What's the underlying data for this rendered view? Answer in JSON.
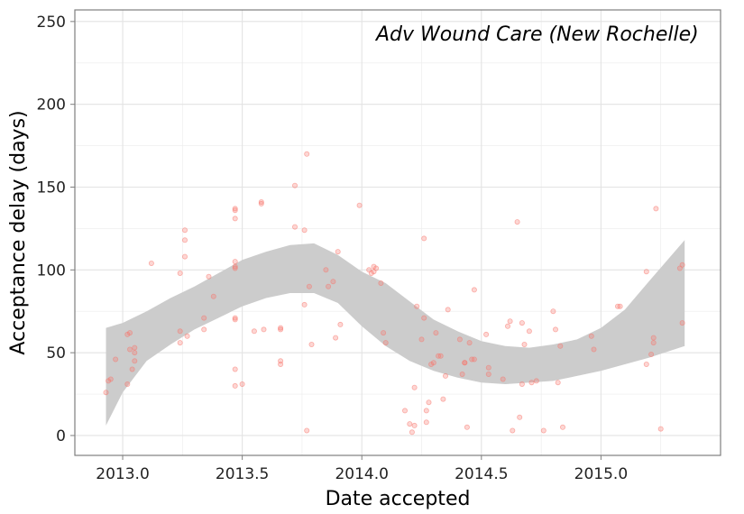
{
  "chart_data": {
    "type": "scatter",
    "title": "",
    "annotation": "Adv Wound Care (New Rochelle)",
    "xlabel": "Date accepted",
    "ylabel": "Acceptance delay (days)",
    "xlim": [
      2012.8,
      2015.5
    ],
    "ylim": [
      -12,
      257
    ],
    "x_ticks": [
      2013.0,
      2013.5,
      2014.0,
      2014.5,
      2015.0
    ],
    "x_tick_labels": [
      "2013.0",
      "2013.5",
      "2014.0",
      "2014.5",
      "2015.0"
    ],
    "y_ticks": [
      0,
      50,
      100,
      150,
      200,
      250
    ],
    "y_tick_labels": [
      "0",
      "50",
      "100",
      "150",
      "200",
      "250"
    ],
    "grid": true,
    "colors": {
      "points": "#f8766d",
      "ribbon": "#cccccc",
      "panel_border": "#7f7f7f",
      "grid": "#ebebeb"
    },
    "points": [
      [
        2012.93,
        26
      ],
      [
        2012.94,
        33
      ],
      [
        2012.95,
        34
      ],
      [
        2012.97,
        46
      ],
      [
        2013.02,
        61
      ],
      [
        2013.03,
        62
      ],
      [
        2013.03,
        52
      ],
      [
        2013.04,
        40
      ],
      [
        2013.02,
        31
      ],
      [
        2013.05,
        50
      ],
      [
        2013.05,
        53
      ],
      [
        2013.05,
        45
      ],
      [
        2013.12,
        104
      ],
      [
        2013.24,
        98
      ],
      [
        2013.24,
        63
      ],
      [
        2013.24,
        56
      ],
      [
        2013.26,
        124
      ],
      [
        2013.26,
        118
      ],
      [
        2013.26,
        108
      ],
      [
        2013.27,
        60
      ],
      [
        2013.34,
        64
      ],
      [
        2013.34,
        71
      ],
      [
        2013.36,
        96
      ],
      [
        2013.38,
        84
      ],
      [
        2013.47,
        137
      ],
      [
        2013.47,
        136
      ],
      [
        2013.47,
        131
      ],
      [
        2013.47,
        105
      ],
      [
        2013.47,
        102
      ],
      [
        2013.47,
        101
      ],
      [
        2013.47,
        71
      ],
      [
        2013.47,
        70
      ],
      [
        2013.47,
        40
      ],
      [
        2013.47,
        30
      ],
      [
        2013.5,
        31
      ],
      [
        2013.55,
        63
      ],
      [
        2013.58,
        141
      ],
      [
        2013.58,
        140
      ],
      [
        2013.59,
        64
      ],
      [
        2013.66,
        64
      ],
      [
        2013.66,
        65
      ],
      [
        2013.66,
        45
      ],
      [
        2013.66,
        43
      ],
      [
        2013.72,
        151
      ],
      [
        2013.72,
        126
      ],
      [
        2013.76,
        124
      ],
      [
        2013.76,
        79
      ],
      [
        2013.77,
        170
      ],
      [
        2013.77,
        3
      ],
      [
        2013.78,
        90
      ],
      [
        2013.79,
        55
      ],
      [
        2013.85,
        100
      ],
      [
        2013.86,
        90
      ],
      [
        2013.88,
        93
      ],
      [
        2013.89,
        59
      ],
      [
        2013.9,
        111
      ],
      [
        2013.91,
        67
      ],
      [
        2013.99,
        139
      ],
      [
        2014.03,
        100
      ],
      [
        2014.04,
        98
      ],
      [
        2014.05,
        102
      ],
      [
        2014.05,
        99
      ],
      [
        2014.06,
        101
      ],
      [
        2014.08,
        92
      ],
      [
        2014.09,
        62
      ],
      [
        2014.1,
        56
      ],
      [
        2014.18,
        15
      ],
      [
        2014.2,
        7
      ],
      [
        2014.21,
        2
      ],
      [
        2014.22,
        6
      ],
      [
        2014.22,
        29
      ],
      [
        2014.23,
        78
      ],
      [
        2014.25,
        58
      ],
      [
        2014.26,
        71
      ],
      [
        2014.26,
        119
      ],
      [
        2014.27,
        8
      ],
      [
        2014.27,
        15
      ],
      [
        2014.28,
        20
      ],
      [
        2014.29,
        43
      ],
      [
        2014.3,
        44
      ],
      [
        2014.31,
        62
      ],
      [
        2014.32,
        48
      ],
      [
        2014.33,
        48
      ],
      [
        2014.34,
        22
      ],
      [
        2014.35,
        36
      ],
      [
        2014.36,
        76
      ],
      [
        2014.41,
        58
      ],
      [
        2014.42,
        37
      ],
      [
        2014.43,
        44
      ],
      [
        2014.43,
        44
      ],
      [
        2014.44,
        5
      ],
      [
        2014.45,
        56
      ],
      [
        2014.46,
        46
      ],
      [
        2014.47,
        88
      ],
      [
        2014.47,
        46
      ],
      [
        2014.52,
        61
      ],
      [
        2014.53,
        41
      ],
      [
        2014.53,
        37
      ],
      [
        2014.59,
        34
      ],
      [
        2014.61,
        66
      ],
      [
        2014.62,
        69
      ],
      [
        2014.63,
        3
      ],
      [
        2014.65,
        129
      ],
      [
        2014.66,
        11
      ],
      [
        2014.67,
        31
      ],
      [
        2014.67,
        68
      ],
      [
        2014.68,
        55
      ],
      [
        2014.7,
        63
      ],
      [
        2014.71,
        32
      ],
      [
        2014.73,
        33
      ],
      [
        2014.76,
        3
      ],
      [
        2014.8,
        75
      ],
      [
        2014.81,
        64
      ],
      [
        2014.82,
        32
      ],
      [
        2014.83,
        54
      ],
      [
        2014.84,
        5
      ],
      [
        2014.96,
        60
      ],
      [
        2014.97,
        52
      ],
      [
        2015.07,
        78
      ],
      [
        2015.08,
        78
      ],
      [
        2015.19,
        99
      ],
      [
        2015.19,
        43
      ],
      [
        2015.21,
        49
      ],
      [
        2015.22,
        59
      ],
      [
        2015.22,
        56
      ],
      [
        2015.23,
        137
      ],
      [
        2015.25,
        4
      ],
      [
        2015.33,
        101
      ],
      [
        2015.34,
        103
      ],
      [
        2015.34,
        68
      ]
    ],
    "smooth": {
      "x": [
        2012.93,
        2013.0,
        2013.1,
        2013.2,
        2013.3,
        2013.4,
        2013.5,
        2013.6,
        2013.7,
        2013.8,
        2013.9,
        2014.0,
        2014.1,
        2014.2,
        2014.3,
        2014.4,
        2014.5,
        2014.6,
        2014.7,
        2014.8,
        2014.9,
        2015.0,
        2015.1,
        2015.2,
        2015.35
      ],
      "upper": [
        65,
        68,
        75,
        83,
        90,
        98,
        106,
        111,
        115,
        116,
        109,
        99,
        92,
        81,
        70,
        63,
        57,
        54,
        53,
        55,
        58,
        65,
        76,
        93,
        118
      ],
      "lower": [
        6,
        26,
        45,
        55,
        64,
        71,
        78,
        83,
        86,
        86,
        80,
        66,
        54,
        45,
        39,
        35,
        32,
        31,
        32,
        33,
        36,
        39,
        43,
        47,
        54
      ]
    }
  }
}
